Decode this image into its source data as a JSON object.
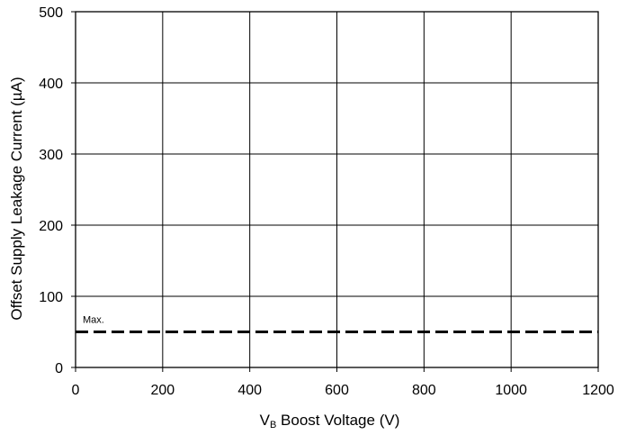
{
  "chart_data": {
    "type": "line",
    "title": "",
    "xlabel_main": "V",
    "xlabel_sub": "B",
    "xlabel_rest": " Boost Voltage (V)",
    "ylabel": "Offset Supply Leakage Current (µA)",
    "xlim": [
      0,
      1200
    ],
    "ylim": [
      0,
      500
    ],
    "xticks": [
      0,
      200,
      400,
      600,
      800,
      1000,
      1200
    ],
    "yticks": [
      0,
      100,
      200,
      300,
      400,
      500
    ],
    "grid": true,
    "series": [
      {
        "name": "Max.",
        "style": "dashed",
        "color": "#000000",
        "x": [
          0,
          1200
        ],
        "y": [
          50,
          50
        ]
      }
    ]
  }
}
